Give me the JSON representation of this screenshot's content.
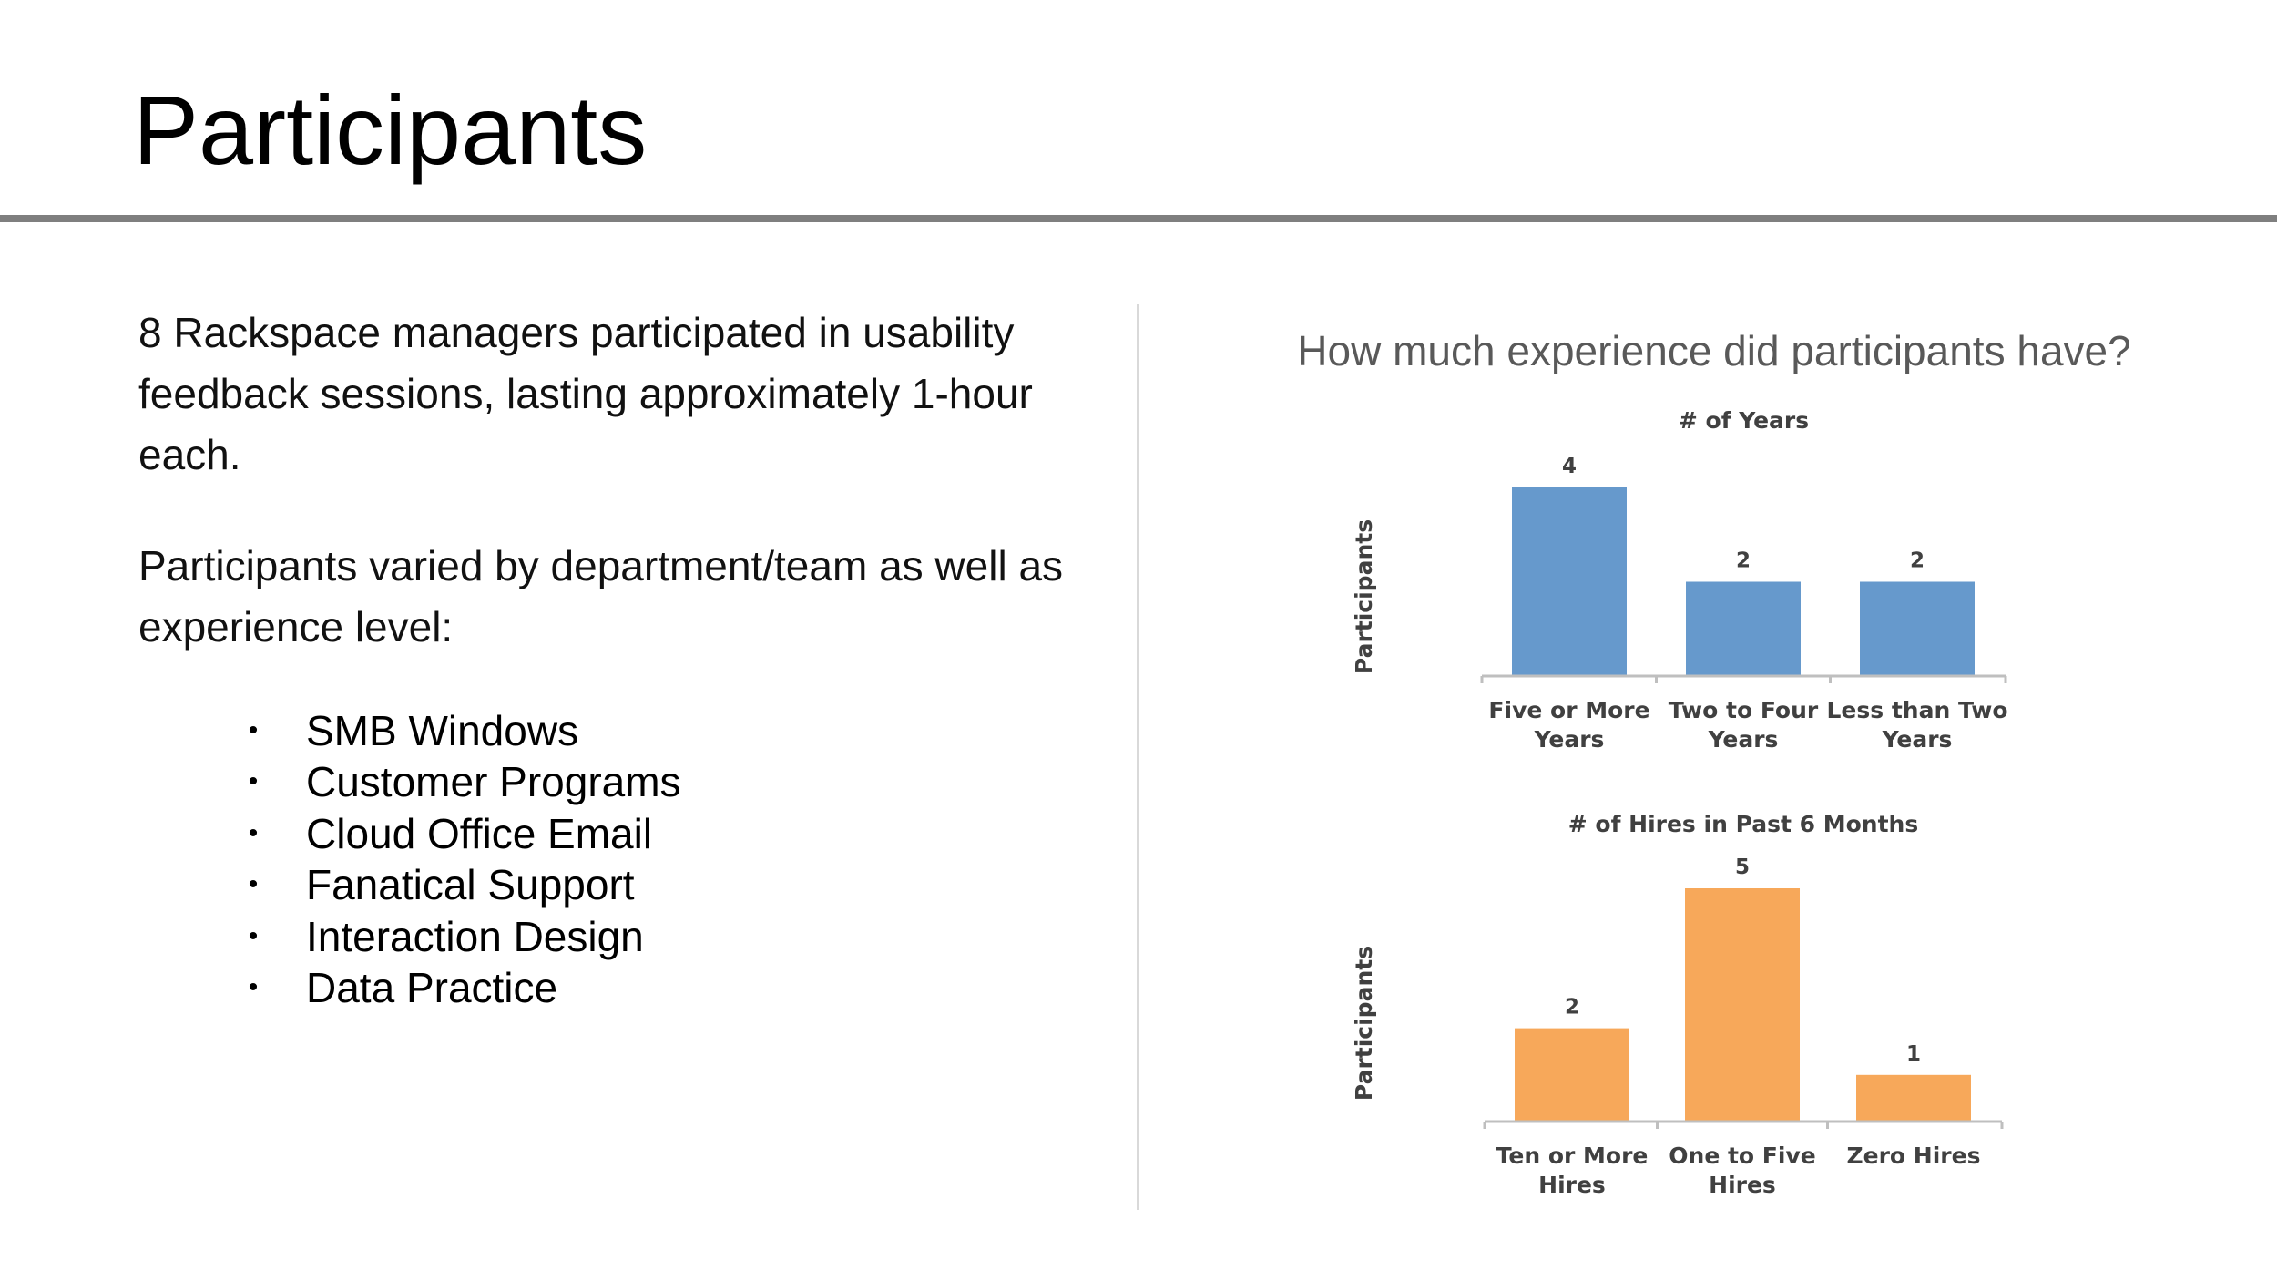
{
  "page": {
    "title": "Participants",
    "intro": "8 Rackspace managers participated in usability feedback sessions, lasting approximately 1-hour each.",
    "varied": "Participants varied by department/team as well as experience level:",
    "bullet_glyph": "•",
    "bullets": [
      "SMB Windows",
      "Customer Programs",
      "Cloud Office Email",
      "Fanatical Support",
      "Interaction Design",
      "Data Practice"
    ],
    "chart_heading": "How much experience did participants have?"
  },
  "chart_data": [
    {
      "type": "bar",
      "title": "# of Years",
      "categories": [
        [
          "Five or More",
          "Years"
        ],
        [
          "Two to Four",
          "Years"
        ],
        [
          "Less than Two",
          "Years"
        ]
      ],
      "values": [
        4,
        2,
        2
      ],
      "ylabel": "Participants",
      "xlabel": "",
      "ylim": [
        0,
        4
      ],
      "color": "#6699cc",
      "grid": false
    },
    {
      "type": "bar",
      "title": "# of Hires in Past 6 Months",
      "categories": [
        [
          "Ten or More",
          "Hires"
        ],
        [
          "One to Five",
          "Hires"
        ],
        [
          "Zero Hires"
        ]
      ],
      "values": [
        2,
        5,
        1
      ],
      "ylabel": "Participants",
      "xlabel": "",
      "ylim": [
        0,
        5
      ],
      "color": "#f7a85a",
      "grid": false
    }
  ]
}
